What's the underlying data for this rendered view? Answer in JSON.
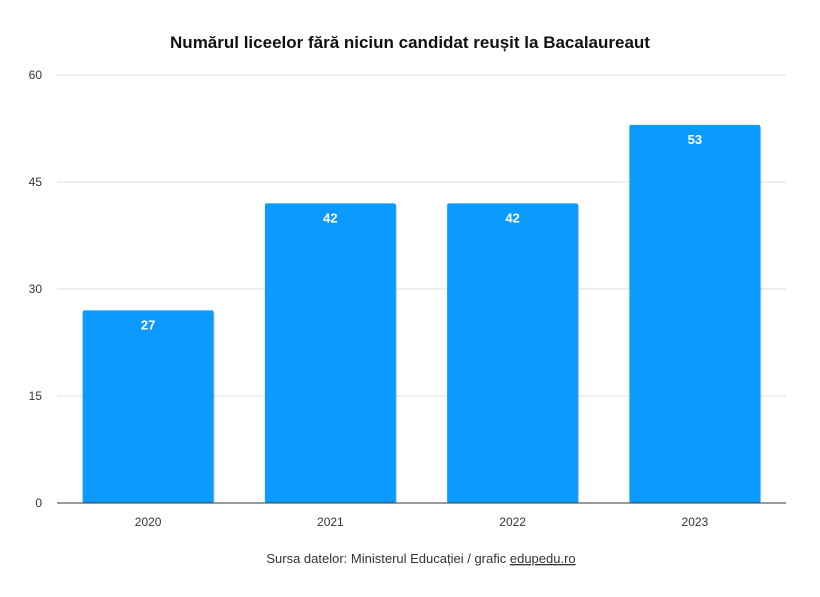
{
  "chart_data": {
    "type": "bar",
    "title": "Numărul liceelor fără niciun candidat reușit la Bacalaureaut",
    "categories": [
      "2020",
      "2021",
      "2022",
      "2023"
    ],
    "values": [
      27,
      42,
      42,
      53
    ],
    "data_labels": [
      "27",
      "42",
      "42",
      "53"
    ],
    "ylim": [
      0,
      60
    ],
    "yticks": [
      "0",
      "15",
      "30",
      "45",
      "60"
    ],
    "ytick_values": [
      0,
      15,
      30,
      45,
      60
    ],
    "grid": true,
    "bar_color": "#0b9bff",
    "xlabel": "",
    "ylabel": ""
  },
  "source": {
    "text": "Sursa datelor: Ministerul Educației / grafic ",
    "link": "edupedu.ro"
  }
}
